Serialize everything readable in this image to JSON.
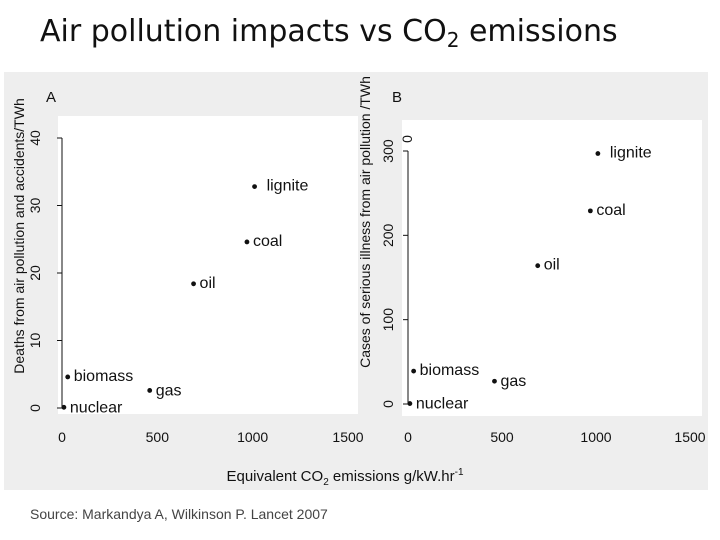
{
  "title": {
    "main": "Air pollution impacts vs CO",
    "sub": "2",
    "tail": " emissions"
  },
  "source": "Source: Markandya A, Wilkinson P. Lancet 2007",
  "colors": {
    "panel": "#eeeeee",
    "plot": "#ffffff",
    "ink": "#111111",
    "text": "#111111"
  },
  "chart_data": [
    {
      "type": "scatter",
      "panel_label": "A",
      "ylabel": "Deaths from air pollution and accidents/TWh",
      "xlim": [
        0,
        1500
      ],
      "ylim": [
        0,
        40
      ],
      "xticks": [
        0,
        500,
        1000,
        1500
      ],
      "yticks": [
        0,
        10,
        20,
        30,
        40
      ],
      "grid": false,
      "points": [
        {
          "label": "nuclear",
          "x": 10,
          "y": 0.1
        },
        {
          "label": "biomass",
          "x": 30,
          "y": 4.6
        },
        {
          "label": "gas",
          "x": 460,
          "y": 2.6
        },
        {
          "label": "oil",
          "x": 690,
          "y": 18.4
        },
        {
          "label": "coal",
          "x": 970,
          "y": 24.6
        },
        {
          "label": "lignite",
          "x": 1010,
          "y": 32.8
        }
      ]
    },
    {
      "type": "scatter",
      "panel_label": "B",
      "ylabel": "Cases of serious illness from air pollution /TWh",
      "xlabel": {
        "pre": "Equivalent CO",
        "sub": "2",
        "mid": " emissions g/kW.hr",
        "sup": "-1"
      },
      "xlim": [
        0,
        1500
      ],
      "ylim": [
        0,
        300
      ],
      "xticks": [
        0,
        500,
        1000,
        1500
      ],
      "yticks": [
        0,
        100,
        200,
        300
      ],
      "extra_tick": "0",
      "grid": false,
      "points": [
        {
          "label": "nuclear",
          "x": 10,
          "y": 0.5
        },
        {
          "label": "biomass",
          "x": 30,
          "y": 39
        },
        {
          "label": "gas",
          "x": 460,
          "y": 27
        },
        {
          "label": "oil",
          "x": 690,
          "y": 164
        },
        {
          "label": "coal",
          "x": 970,
          "y": 229
        },
        {
          "label": "lignite",
          "x": 1010,
          "y": 297
        }
      ]
    }
  ]
}
